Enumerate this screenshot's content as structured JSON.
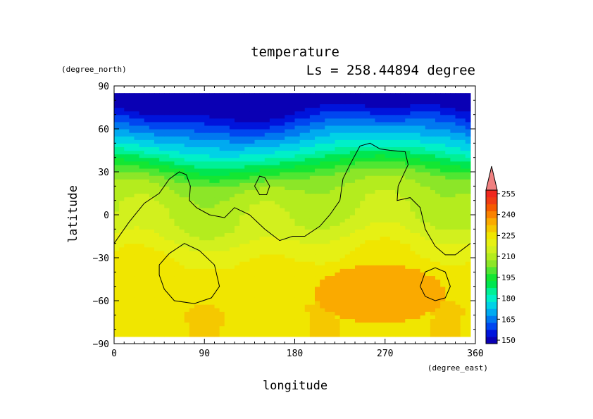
{
  "chart_data": {
    "type": "heatmap",
    "title": "temperature",
    "subtitle": "Ls = 258.44894 degree",
    "xlabel": "longitude",
    "ylabel": "latitude",
    "x_unit": "(degree_east)",
    "y_unit": "(degree_north)",
    "xlim": [
      0,
      360
    ],
    "ylim": [
      -90,
      90
    ],
    "data_extent": {
      "lon": [
        0,
        355
      ],
      "lat": [
        -85,
        85
      ]
    },
    "x_ticks": [
      0,
      90,
      180,
      270,
      360
    ],
    "x_tick_labels": [
      "0",
      "90",
      "180",
      "270",
      "360"
    ],
    "y_ticks": [
      90,
      60,
      30,
      0,
      -30,
      -60,
      -90
    ],
    "y_tick_labels": [
      "90",
      "60",
      "30",
      "0",
      "−30",
      "−60",
      "−90"
    ],
    "colorbar": {
      "levels": [
        150,
        155,
        160,
        165,
        170,
        175,
        180,
        185,
        190,
        195,
        200,
        205,
        210,
        215,
        220,
        225,
        230,
        235,
        240,
        245,
        250,
        255,
        260
      ],
      "labels": [
        "150",
        "165",
        "180",
        "195",
        "210",
        "225",
        "240",
        "255"
      ],
      "label_values": [
        150,
        165,
        180,
        195,
        210,
        225,
        240,
        255
      ],
      "colors": [
        "#0a00b4",
        "#0014dc",
        "#0046f0",
        "#0078f0",
        "#00aaf0",
        "#00d2e6",
        "#00f0c8",
        "#00f096",
        "#00e650",
        "#14e632",
        "#50e632",
        "#8ce628",
        "#b4ec1e",
        "#d2f01e",
        "#e6f014",
        "#f0e600",
        "#f5c800",
        "#faaa00",
        "#fa8200",
        "#f55a00",
        "#f03c14",
        "#f0281e"
      ],
      "extend_max_color": "#f08080"
    },
    "lat_profile": {
      "lat": [
        -85,
        -75,
        -65,
        -55,
        -45,
        -35,
        -25,
        -15,
        -5,
        5,
        15,
        25,
        35,
        45,
        55,
        65,
        75,
        85
      ],
      "value": [
        228,
        228,
        229,
        228,
        227,
        226,
        224,
        219,
        215,
        214,
        212,
        207,
        195,
        182,
        172,
        162,
        152,
        146
      ]
    },
    "warm_regions": [
      {
        "name": "south-warm-patch",
        "lon": [
          200,
          330
        ],
        "lat": [
          -75,
          -35
        ],
        "value": 238
      },
      {
        "name": "south-yellow-band",
        "lon": [
          0,
          360
        ],
        "lat": [
          -65,
          -25
        ],
        "value": 224
      }
    ],
    "topography_contours": [
      {
        "name": "continent-outline",
        "points": [
          [
            0,
            -20
          ],
          [
            15,
            -5
          ],
          [
            30,
            8
          ],
          [
            45,
            15
          ],
          [
            55,
            25
          ],
          [
            65,
            30
          ],
          [
            72,
            28
          ],
          [
            76,
            20
          ],
          [
            75,
            10
          ],
          [
            82,
            5
          ],
          [
            95,
            0
          ],
          [
            110,
            -2
          ],
          [
            120,
            5
          ],
          [
            135,
            0
          ],
          [
            150,
            -10
          ],
          [
            165,
            -18
          ],
          [
            178,
            -15
          ],
          [
            190,
            -15
          ],
          [
            205,
            -8
          ],
          [
            215,
            0
          ],
          [
            225,
            10
          ],
          [
            228,
            25
          ],
          [
            235,
            35
          ],
          [
            245,
            48
          ],
          [
            255,
            50
          ],
          [
            265,
            46
          ],
          [
            275,
            45
          ],
          [
            290,
            44
          ],
          [
            293,
            35
          ],
          [
            283,
            20
          ],
          [
            282,
            10
          ],
          [
            295,
            12
          ],
          [
            305,
            5
          ],
          [
            310,
            -10
          ],
          [
            320,
            -22
          ],
          [
            330,
            -28
          ],
          [
            340,
            -28
          ],
          [
            355,
            -20
          ]
        ]
      },
      {
        "name": "elysium-outline",
        "points": [
          [
            140,
            20
          ],
          [
            145,
            27
          ],
          [
            150,
            26
          ],
          [
            155,
            20
          ],
          [
            152,
            14
          ],
          [
            145,
            14
          ],
          [
            140,
            20
          ]
        ]
      },
      {
        "name": "hellas-basin-outline",
        "points": [
          [
            45,
            -35
          ],
          [
            55,
            -27
          ],
          [
            70,
            -20
          ],
          [
            85,
            -25
          ],
          [
            100,
            -35
          ],
          [
            105,
            -50
          ],
          [
            97,
            -58
          ],
          [
            80,
            -62
          ],
          [
            60,
            -60
          ],
          [
            50,
            -52
          ],
          [
            45,
            -42
          ],
          [
            45,
            -35
          ]
        ]
      },
      {
        "name": "argyre-basin-outline",
        "points": [
          [
            305,
            -50
          ],
          [
            310,
            -40
          ],
          [
            320,
            -37
          ],
          [
            330,
            -40
          ],
          [
            335,
            -50
          ],
          [
            330,
            -58
          ],
          [
            320,
            -60
          ],
          [
            310,
            -57
          ],
          [
            305,
            -50
          ]
        ]
      }
    ]
  }
}
